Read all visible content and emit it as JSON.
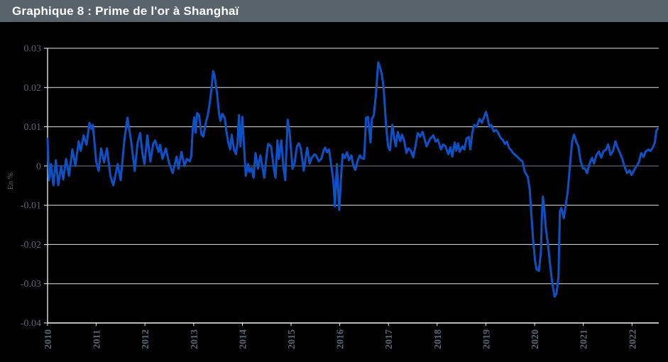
{
  "header": {
    "title": "Graphique 8 : Prime de l'or à Shanghaï"
  },
  "colors": {
    "page_bg": "#000000",
    "titlebar_bg": "#59636c",
    "title_text": "#ffffff",
    "tick_text": "#5a6574",
    "grid": "#e4e4e4",
    "zero_grid": "#767d85",
    "axis": "#f5f5f5",
    "line": "#0d51c6"
  },
  "chart_data": {
    "type": "line",
    "title": "Graphique 8 : Prime de l'or à Shanghaï",
    "xlabel": "",
    "ylabel": "En %",
    "xlim": [
      2010,
      2022.55
    ],
    "ylim": [
      -0.04,
      0.03
    ],
    "grid": true,
    "legend": false,
    "x_tick_values": [
      2010,
      2011,
      2012,
      2013,
      2014,
      2015,
      2016,
      2017,
      2018,
      2019,
      2020,
      2021,
      2022
    ],
    "x_tick_labels": [
      "2010",
      "2011",
      "2012",
      "2013",
      "2014",
      "2015",
      "2016",
      "2017",
      "2018",
      "2019",
      "2020",
      "2021",
      "2022"
    ],
    "y_tick_values": [
      0.03,
      0.02,
      0.01,
      0,
      -0.01,
      -0.02,
      -0.03,
      -0.04
    ],
    "y_tick_labels": [
      "0.03",
      "0.02",
      "0.01",
      "0",
      "-0.01",
      "-0.02",
      "-0.03",
      "-0.04"
    ],
    "series": [
      {
        "name": "Prime de l'or à Shanghaï",
        "points": [
          [
            2010.0,
            0.0069
          ],
          [
            2010.03,
            -0.0036
          ],
          [
            2010.07,
            0.0005
          ],
          [
            2010.12,
            -0.0049
          ],
          [
            2010.17,
            0.0015
          ],
          [
            2010.22,
            -0.0049
          ],
          [
            2010.28,
            0.0
          ],
          [
            2010.32,
            -0.0034
          ],
          [
            2010.38,
            0.0018
          ],
          [
            2010.44,
            -0.0025
          ],
          [
            2010.51,
            0.0042
          ],
          [
            2010.57,
            0.0
          ],
          [
            2010.64,
            0.0063
          ],
          [
            2010.68,
            0.0039
          ],
          [
            2010.74,
            0.0078
          ],
          [
            2010.8,
            0.0054
          ],
          [
            2010.86,
            0.011
          ],
          [
            2010.9,
            0.0095
          ],
          [
            2010.93,
            0.0105
          ],
          [
            2011.0,
            0.0011
          ],
          [
            2011.05,
            -0.0013
          ],
          [
            2011.1,
            0.0045
          ],
          [
            2011.16,
            0.0009
          ],
          [
            2011.22,
            0.0045
          ],
          [
            2011.29,
            -0.0025
          ],
          [
            2011.35,
            -0.0049
          ],
          [
            2011.44,
            0.0005
          ],
          [
            2011.5,
            -0.0036
          ],
          [
            2011.58,
            0.0069
          ],
          [
            2011.64,
            0.0123
          ],
          [
            2011.72,
            0.006
          ],
          [
            2011.79,
            -0.0013
          ],
          [
            2011.85,
            0.006
          ],
          [
            2011.9,
            0.0084
          ],
          [
            2011.95,
            0.003
          ],
          [
            2011.99,
            0.0005
          ],
          [
            2012.05,
            0.0078
          ],
          [
            2012.11,
            0.0011
          ],
          [
            2012.17,
            0.0057
          ],
          [
            2012.21,
            0.0065
          ],
          [
            2012.28,
            0.0036
          ],
          [
            2012.31,
            0.0054
          ],
          [
            2012.36,
            0.0018
          ],
          [
            2012.43,
            0.0045
          ],
          [
            2012.49,
            0.001
          ],
          [
            2012.53,
            -0.0005
          ],
          [
            2012.57,
            -0.0018
          ],
          [
            2012.65,
            0.0024
          ],
          [
            2012.69,
            -0.0007
          ],
          [
            2012.75,
            0.0036
          ],
          [
            2012.81,
            0.0
          ],
          [
            2012.86,
            0.0018
          ],
          [
            2012.92,
            0.0012
          ],
          [
            2012.95,
            0.0025
          ],
          [
            2012.98,
            0.009
          ],
          [
            2013.01,
            0.0124
          ],
          [
            2013.04,
            0.0085
          ],
          [
            2013.07,
            0.0135
          ],
          [
            2013.11,
            0.013
          ],
          [
            2013.16,
            0.008
          ],
          [
            2013.2,
            0.0075
          ],
          [
            2013.24,
            0.0105
          ],
          [
            2013.29,
            0.013
          ],
          [
            2013.33,
            0.016
          ],
          [
            2013.36,
            0.019
          ],
          [
            2013.4,
            0.0242
          ],
          [
            2013.43,
            0.023
          ],
          [
            2013.48,
            0.0185
          ],
          [
            2013.52,
            0.0135
          ],
          [
            2013.55,
            0.0115
          ],
          [
            2013.59,
            0.0133
          ],
          [
            2013.64,
            0.0122
          ],
          [
            2013.67,
            0.009
          ],
          [
            2013.71,
            0.006
          ],
          [
            2013.75,
            0.0042
          ],
          [
            2013.78,
            0.008
          ],
          [
            2013.83,
            0.004
          ],
          [
            2013.87,
            0.003
          ],
          [
            2013.9,
            0.006
          ],
          [
            2013.93,
            0.013
          ],
          [
            2013.96,
            0.005
          ],
          [
            2014.0,
            0.0125
          ],
          [
            2014.03,
            0.006
          ],
          [
            2014.07,
            -0.0025
          ],
          [
            2014.12,
            0.0005
          ],
          [
            2014.15,
            -0.0015
          ],
          [
            2014.19,
            -0.0005
          ],
          [
            2014.23,
            -0.003
          ],
          [
            2014.27,
            0.0033
          ],
          [
            2014.32,
            -0.0007
          ],
          [
            2014.37,
            0.0027
          ],
          [
            2014.45,
            -0.003
          ],
          [
            2014.51,
            0.004
          ],
          [
            2014.53,
            0.0056
          ],
          [
            2014.59,
            0.005
          ],
          [
            2014.65,
            -0.001
          ],
          [
            2014.68,
            -0.003
          ],
          [
            2014.72,
            0.0065
          ],
          [
            2014.75,
            0.0018
          ],
          [
            2014.8,
            0.0065
          ],
          [
            2014.84,
            0.0
          ],
          [
            2014.88,
            -0.0036
          ],
          [
            2014.93,
            0.0118
          ],
          [
            2014.97,
            0.0085
          ],
          [
            2015.03,
            -0.0007
          ],
          [
            2015.07,
            0.0005
          ],
          [
            2015.12,
            0.005
          ],
          [
            2015.16,
            0.0058
          ],
          [
            2015.2,
            0.0044
          ],
          [
            2015.26,
            -0.0012
          ],
          [
            2015.31,
            0.003
          ],
          [
            2015.33,
            0.0047
          ],
          [
            2015.38,
            0.0006
          ],
          [
            2015.42,
            0.002
          ],
          [
            2015.48,
            0.003
          ],
          [
            2015.52,
            0.0025
          ],
          [
            2015.57,
            0.0012
          ],
          [
            2015.62,
            0.0018
          ],
          [
            2015.67,
            0.004
          ],
          [
            2015.7,
            0.0047
          ],
          [
            2015.74,
            0.0035
          ],
          [
            2015.78,
            0.0042
          ],
          [
            2015.84,
            -0.0013
          ],
          [
            2015.87,
            -0.004
          ],
          [
            2015.9,
            -0.0103
          ],
          [
            2015.94,
            0.0005
          ],
          [
            2015.99,
            -0.0112
          ],
          [
            2016.03,
            -0.002
          ],
          [
            2016.06,
            0.003
          ],
          [
            2016.1,
            0.002
          ],
          [
            2016.15,
            0.0035
          ],
          [
            2016.19,
            0.0015
          ],
          [
            2016.24,
            0.0027
          ],
          [
            2016.28,
            0.0
          ],
          [
            2016.32,
            -0.001
          ],
          [
            2016.37,
            0.0015
          ],
          [
            2016.41,
            0.0027
          ],
          [
            2016.45,
            0.002
          ],
          [
            2016.5,
            0.0018
          ],
          [
            2016.54,
            0.0123
          ],
          [
            2016.58,
            0.0125
          ],
          [
            2016.63,
            0.006
          ],
          [
            2016.66,
            0.012
          ],
          [
            2016.7,
            0.013
          ],
          [
            2016.74,
            0.018
          ],
          [
            2016.79,
            0.0264
          ],
          [
            2016.83,
            0.025
          ],
          [
            2016.86,
            0.0235
          ],
          [
            2016.9,
            0.02
          ],
          [
            2016.95,
            0.0105
          ],
          [
            2016.99,
            0.005
          ],
          [
            2017.03,
            0.004
          ],
          [
            2017.08,
            0.0105
          ],
          [
            2017.12,
            0.007
          ],
          [
            2017.15,
            0.005
          ],
          [
            2017.19,
            0.0087
          ],
          [
            2017.24,
            0.0063
          ],
          [
            2017.28,
            0.008
          ],
          [
            2017.32,
            0.0065
          ],
          [
            2017.37,
            0.0033
          ],
          [
            2017.41,
            0.0045
          ],
          [
            2017.46,
            0.0038
          ],
          [
            2017.51,
            0.0022
          ],
          [
            2017.56,
            0.0055
          ],
          [
            2017.6,
            0.0084
          ],
          [
            2017.65,
            0.0075
          ],
          [
            2017.7,
            0.0087
          ],
          [
            2017.75,
            0.0065
          ],
          [
            2017.78,
            0.005
          ],
          [
            2017.82,
            0.006
          ],
          [
            2017.86,
            0.007
          ],
          [
            2017.92,
            0.0078
          ],
          [
            2017.97,
            0.0062
          ],
          [
            2018.01,
            0.0068
          ],
          [
            2018.08,
            0.0042
          ],
          [
            2018.12,
            0.0055
          ],
          [
            2018.17,
            0.005
          ],
          [
            2018.23,
            0.003
          ],
          [
            2018.27,
            0.0048
          ],
          [
            2018.31,
            0.0024
          ],
          [
            2018.36,
            0.006
          ],
          [
            2018.39,
            0.0039
          ],
          [
            2018.43,
            0.0057
          ],
          [
            2018.46,
            0.0036
          ],
          [
            2018.52,
            0.005
          ],
          [
            2018.56,
            0.0042
          ],
          [
            2018.6,
            0.007
          ],
          [
            2018.65,
            0.0074
          ],
          [
            2018.68,
            0.0042
          ],
          [
            2018.72,
            0.0084
          ],
          [
            2018.76,
            0.0105
          ],
          [
            2018.81,
            0.01
          ],
          [
            2018.87,
            0.012
          ],
          [
            2018.92,
            0.011
          ],
          [
            2019.0,
            0.0138
          ],
          [
            2019.03,
            0.0125
          ],
          [
            2019.07,
            0.01
          ],
          [
            2019.11,
            0.0105
          ],
          [
            2019.16,
            0.0088
          ],
          [
            2019.21,
            0.0092
          ],
          [
            2019.26,
            0.0083
          ],
          [
            2019.3,
            0.0072
          ],
          [
            2019.35,
            0.0066
          ],
          [
            2019.39,
            0.0056
          ],
          [
            2019.43,
            0.0062
          ],
          [
            2019.48,
            0.0045
          ],
          [
            2019.52,
            0.004
          ],
          [
            2019.56,
            0.0033
          ],
          [
            2019.64,
            0.0024
          ],
          [
            2019.71,
            0.0015
          ],
          [
            2019.75,
            0.0012
          ],
          [
            2019.8,
            -0.0015
          ],
          [
            2019.86,
            -0.0028
          ],
          [
            2019.9,
            -0.006
          ],
          [
            2019.94,
            -0.0133
          ],
          [
            2019.97,
            -0.0188
          ],
          [
            2020.01,
            -0.0242
          ],
          [
            2020.04,
            -0.0263
          ],
          [
            2020.09,
            -0.0267
          ],
          [
            2020.13,
            -0.0217
          ],
          [
            2020.15,
            -0.0133
          ],
          [
            2020.17,
            -0.0078
          ],
          [
            2020.2,
            -0.011
          ],
          [
            2020.23,
            -0.0157
          ],
          [
            2020.28,
            -0.0206
          ],
          [
            2020.32,
            -0.0253
          ],
          [
            2020.36,
            -0.0296
          ],
          [
            2020.41,
            -0.0333
          ],
          [
            2020.45,
            -0.0325
          ],
          [
            2020.49,
            -0.0283
          ],
          [
            2020.52,
            -0.0115
          ],
          [
            2020.55,
            -0.0107
          ],
          [
            2020.6,
            -0.0133
          ],
          [
            2020.64,
            -0.01
          ],
          [
            2020.68,
            -0.0066
          ],
          [
            2020.73,
            0.0005
          ],
          [
            2020.77,
            0.0062
          ],
          [
            2020.81,
            0.008
          ],
          [
            2020.86,
            0.006
          ],
          [
            2020.9,
            0.005
          ],
          [
            2020.94,
            0.0015
          ],
          [
            2020.99,
            -0.0006
          ],
          [
            2021.03,
            -0.0006
          ],
          [
            2021.08,
            -0.0018
          ],
          [
            2021.12,
            0.0003
          ],
          [
            2021.18,
            0.0021
          ],
          [
            2021.22,
            0.0006
          ],
          [
            2021.27,
            0.0028
          ],
          [
            2021.32,
            0.0037
          ],
          [
            2021.37,
            0.0021
          ],
          [
            2021.41,
            0.0037
          ],
          [
            2021.47,
            0.0042
          ],
          [
            2021.51,
            0.0055
          ],
          [
            2021.56,
            0.0028
          ],
          [
            2021.61,
            0.0038
          ],
          [
            2021.66,
            0.0063
          ],
          [
            2021.7,
            0.0048
          ],
          [
            2021.76,
            0.0031
          ],
          [
            2021.8,
            0.0019
          ],
          [
            2021.85,
            -0.0003
          ],
          [
            2021.9,
            -0.0018
          ],
          [
            2021.95,
            -0.0011
          ],
          [
            2021.99,
            -0.0023
          ],
          [
            2022.05,
            -0.0009
          ],
          [
            2022.09,
            -0.0001
          ],
          [
            2022.14,
            0.0009
          ],
          [
            2022.19,
            0.0033
          ],
          [
            2022.24,
            0.0023
          ],
          [
            2022.28,
            0.0037
          ],
          [
            2022.34,
            0.0042
          ],
          [
            2022.38,
            0.0038
          ],
          [
            2022.43,
            0.0048
          ],
          [
            2022.47,
            0.006
          ],
          [
            2022.5,
            0.009
          ],
          [
            2022.53,
            0.0095
          ]
        ]
      }
    ]
  }
}
